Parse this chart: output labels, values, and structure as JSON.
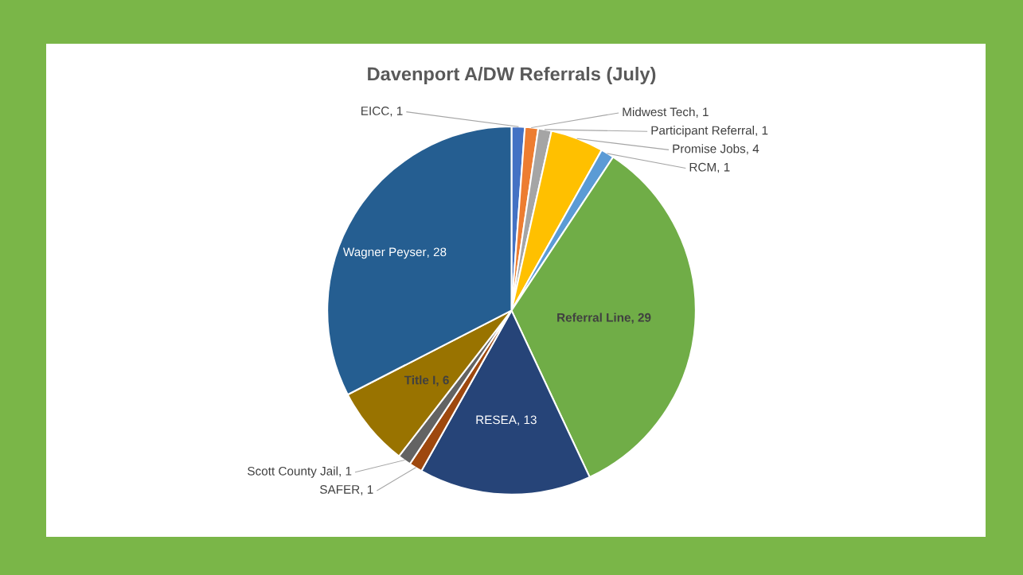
{
  "chart_data": {
    "type": "pie",
    "title": "Davenport A/DW Referrals (July)",
    "categories": [
      "EICC",
      "Midwest Tech",
      "Participant Referral",
      "Promise Jobs",
      "RCM",
      "Referral Line",
      "RESEA",
      "SAFER",
      "Scott County Jail",
      "Title I",
      "Wagner Peyser"
    ],
    "values": [
      1,
      1,
      1,
      4,
      1,
      29,
      13,
      1,
      1,
      6,
      28
    ],
    "colors": [
      "#4472c4",
      "#ed7d31",
      "#a5a5a5",
      "#ffc000",
      "#5b9bd5",
      "#70ad47",
      "#264478",
      "#9e480e",
      "#636363",
      "#997300",
      "#255e91"
    ],
    "value_labels": [
      ", 1",
      ", 1",
      ", 1",
      ", 4",
      ", 1",
      ", 29",
      ", 13",
      ", 1",
      ", 1",
      ", 6",
      ", 28"
    ]
  }
}
